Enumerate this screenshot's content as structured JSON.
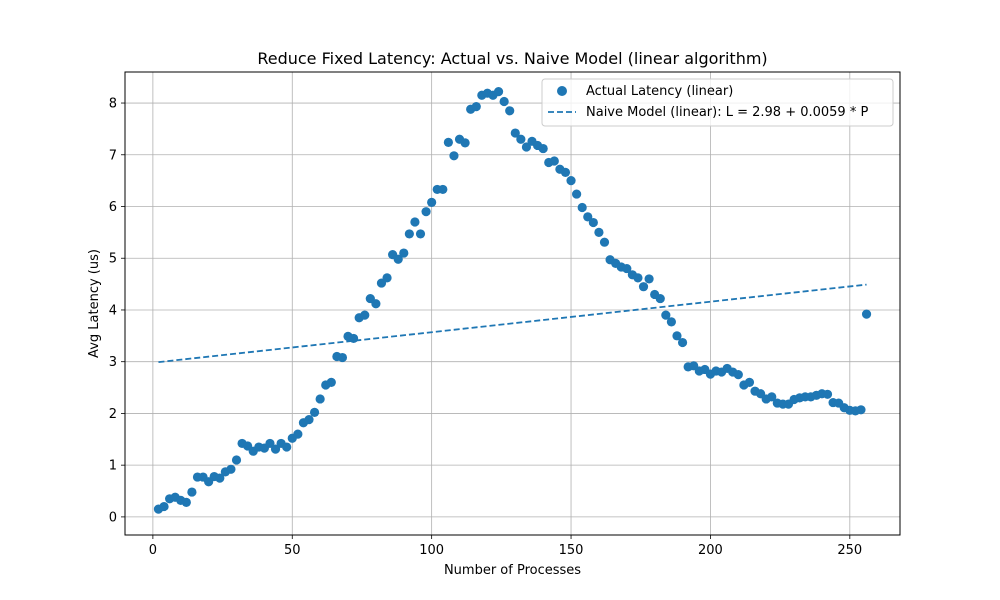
{
  "chart_data": {
    "type": "scatter",
    "title": "Reduce Fixed Latency: Actual vs. Naive Model (linear algorithm)",
    "xlabel": "Number of Processes",
    "ylabel": "Avg Latency (us)",
    "xlim": [
      -10,
      268
    ],
    "ylim": [
      -0.35,
      8.6
    ],
    "xticks": [
      0,
      50,
      100,
      150,
      200,
      250
    ],
    "yticks": [
      0,
      1,
      2,
      3,
      4,
      5,
      6,
      7,
      8
    ],
    "grid": true,
    "legend_position": "top-right",
    "colors": {
      "series": "#1f77b4"
    },
    "series": [
      {
        "name": "Actual Latency (linear)",
        "type": "scatter",
        "points": [
          [
            2,
            0.15
          ],
          [
            4,
            0.2
          ],
          [
            6,
            0.35
          ],
          [
            8,
            0.38
          ],
          [
            10,
            0.32
          ],
          [
            12,
            0.28
          ],
          [
            14,
            0.48
          ],
          [
            16,
            0.77
          ],
          [
            18,
            0.77
          ],
          [
            20,
            0.68
          ],
          [
            22,
            0.78
          ],
          [
            24,
            0.75
          ],
          [
            26,
            0.87
          ],
          [
            28,
            0.92
          ],
          [
            30,
            1.1
          ],
          [
            32,
            1.42
          ],
          [
            34,
            1.37
          ],
          [
            36,
            1.27
          ],
          [
            38,
            1.35
          ],
          [
            40,
            1.33
          ],
          [
            42,
            1.42
          ],
          [
            44,
            1.31
          ],
          [
            46,
            1.42
          ],
          [
            48,
            1.35
          ],
          [
            50,
            1.52
          ],
          [
            52,
            1.6
          ],
          [
            54,
            1.82
          ],
          [
            56,
            1.88
          ],
          [
            58,
            2.02
          ],
          [
            60,
            2.28
          ],
          [
            62,
            2.55
          ],
          [
            64,
            2.6
          ],
          [
            66,
            3.1
          ],
          [
            68,
            3.08
          ],
          [
            70,
            3.49
          ],
          [
            72,
            3.45
          ],
          [
            74,
            3.85
          ],
          [
            76,
            3.9
          ],
          [
            78,
            4.22
          ],
          [
            80,
            4.12
          ],
          [
            82,
            4.52
          ],
          [
            84,
            4.62
          ],
          [
            86,
            5.07
          ],
          [
            88,
            4.98
          ],
          [
            90,
            5.1
          ],
          [
            92,
            5.47
          ],
          [
            94,
            5.7
          ],
          [
            96,
            5.47
          ],
          [
            98,
            5.9
          ],
          [
            100,
            6.08
          ],
          [
            102,
            6.33
          ],
          [
            104,
            6.33
          ],
          [
            106,
            7.24
          ],
          [
            108,
            6.98
          ],
          [
            110,
            7.3
          ],
          [
            112,
            7.23
          ],
          [
            114,
            7.88
          ],
          [
            116,
            7.93
          ],
          [
            118,
            8.15
          ],
          [
            120,
            8.19
          ],
          [
            122,
            8.15
          ],
          [
            124,
            8.22
          ],
          [
            126,
            8.03
          ],
          [
            128,
            7.85
          ],
          [
            130,
            7.42
          ],
          [
            132,
            7.3
          ],
          [
            134,
            7.15
          ],
          [
            136,
            7.26
          ],
          [
            138,
            7.18
          ],
          [
            140,
            7.12
          ],
          [
            142,
            6.85
          ],
          [
            144,
            6.88
          ],
          [
            146,
            6.72
          ],
          [
            148,
            6.66
          ],
          [
            150,
            6.5
          ],
          [
            152,
            6.24
          ],
          [
            154,
            5.98
          ],
          [
            156,
            5.8
          ],
          [
            158,
            5.69
          ],
          [
            160,
            5.5
          ],
          [
            162,
            5.31
          ],
          [
            164,
            4.97
          ],
          [
            166,
            4.9
          ],
          [
            168,
            4.83
          ],
          [
            170,
            4.8
          ],
          [
            172,
            4.68
          ],
          [
            174,
            4.62
          ],
          [
            176,
            4.45
          ],
          [
            178,
            4.6
          ],
          [
            180,
            4.3
          ],
          [
            182,
            4.22
          ],
          [
            184,
            3.9
          ],
          [
            186,
            3.77
          ],
          [
            188,
            3.5
          ],
          [
            190,
            3.37
          ],
          [
            192,
            2.9
          ],
          [
            194,
            2.92
          ],
          [
            196,
            2.82
          ],
          [
            198,
            2.85
          ],
          [
            200,
            2.76
          ],
          [
            202,
            2.82
          ],
          [
            204,
            2.8
          ],
          [
            206,
            2.87
          ],
          [
            208,
            2.8
          ],
          [
            210,
            2.75
          ],
          [
            212,
            2.55
          ],
          [
            214,
            2.6
          ],
          [
            216,
            2.43
          ],
          [
            218,
            2.38
          ],
          [
            220,
            2.28
          ],
          [
            222,
            2.32
          ],
          [
            224,
            2.2
          ],
          [
            226,
            2.18
          ],
          [
            228,
            2.18
          ],
          [
            230,
            2.27
          ],
          [
            232,
            2.3
          ],
          [
            234,
            2.32
          ],
          [
            236,
            2.32
          ],
          [
            238,
            2.35
          ],
          [
            240,
            2.38
          ],
          [
            242,
            2.37
          ],
          [
            244,
            2.21
          ],
          [
            246,
            2.2
          ],
          [
            248,
            2.11
          ],
          [
            250,
            2.06
          ],
          [
            252,
            2.05
          ],
          [
            254,
            2.07
          ],
          [
            256,
            3.92
          ]
        ]
      },
      {
        "name": "Naive Model (linear): L = 2.98 + 0.0059 * P",
        "type": "line",
        "style": "dashed",
        "intercept": 2.98,
        "slope": 0.0059,
        "x_range": [
          2,
          256
        ]
      }
    ]
  }
}
